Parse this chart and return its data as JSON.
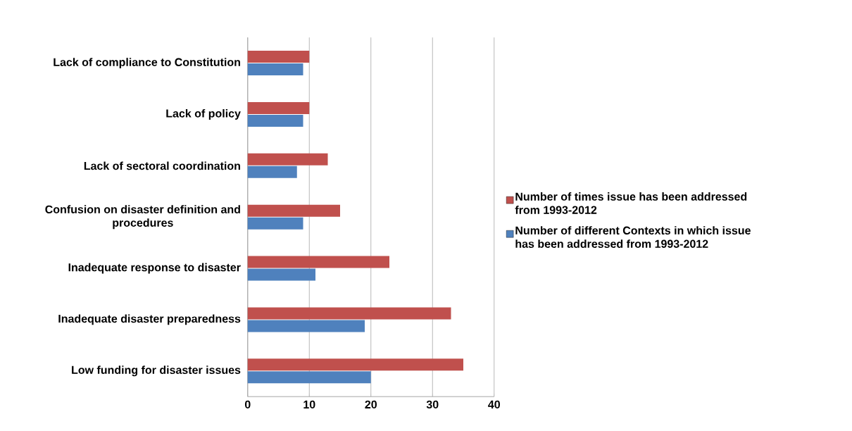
{
  "chart_data": {
    "type": "bar",
    "orientation": "horizontal",
    "categories": [
      "Lack of compliance to Constitution",
      "Lack of policy",
      "Lack of sectoral coordination",
      "Confusion on disaster definition and procedures",
      "Inadequate response to disaster",
      "Inadequate disaster preparedness",
      "Low funding for disaster issues"
    ],
    "series": [
      {
        "name": "Number of times issue has been addressed from 1993-2012",
        "color": "#c0504d",
        "values": [
          10,
          10,
          13,
          15,
          23,
          33,
          35
        ]
      },
      {
        "name": "Number of different Contexts in which issue has been addressed from 1993-2012",
        "color": "#4f81bd",
        "values": [
          9,
          9,
          8,
          9,
          11,
          19,
          20
        ]
      }
    ],
    "xlim": [
      0,
      40
    ],
    "xticks": [
      0,
      10,
      20,
      30,
      40
    ],
    "grid": "x",
    "legend": "right"
  }
}
